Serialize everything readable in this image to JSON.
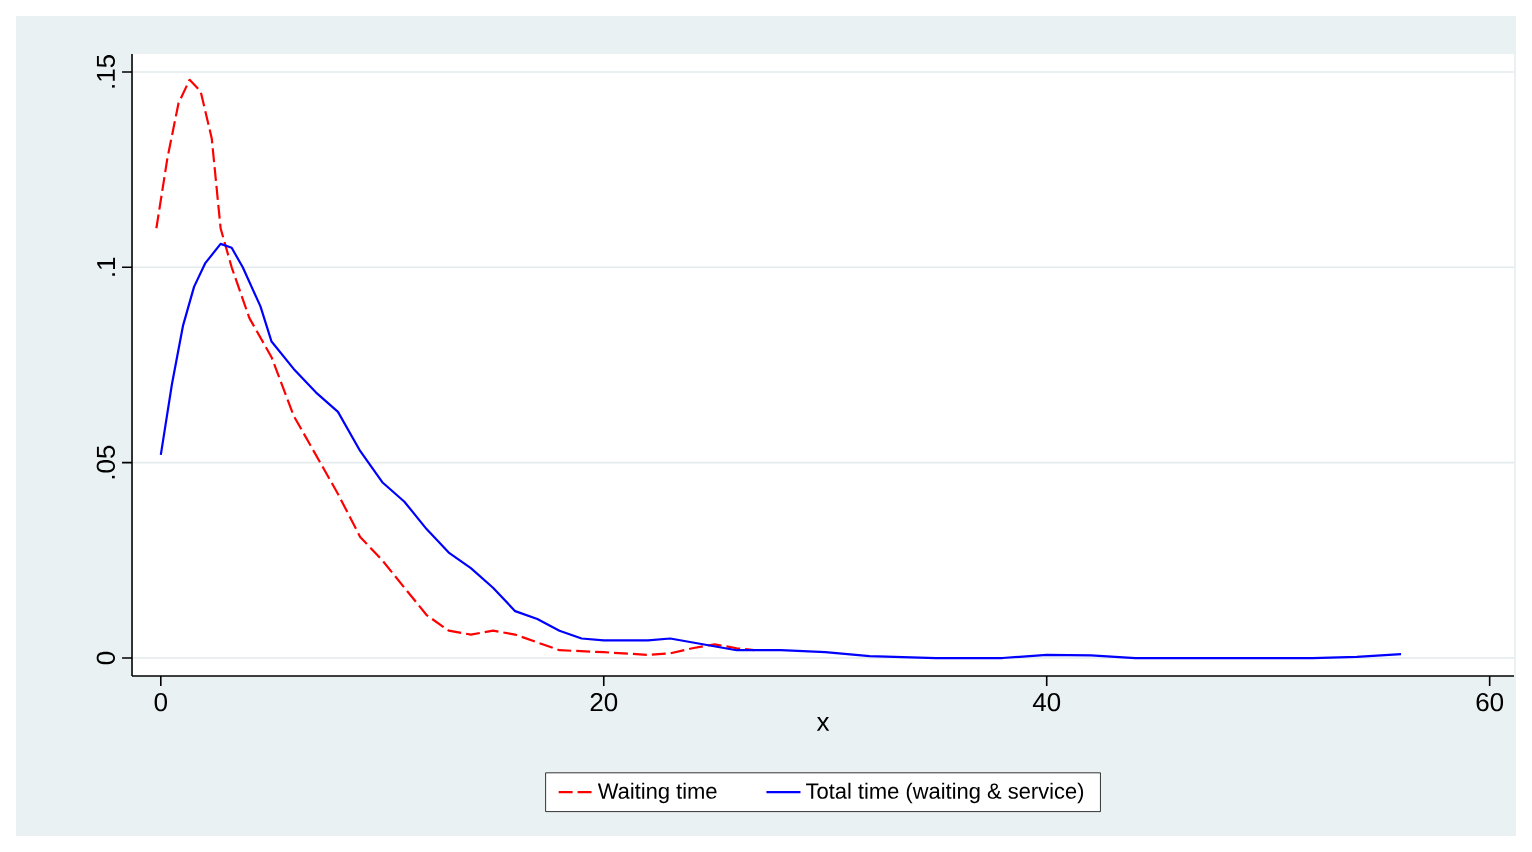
{
  "chart_data": {
    "type": "line",
    "xlabel": "x",
    "xlim": [
      -1.3,
      61.1
    ],
    "ylim": [
      -0.0046,
      0.1546
    ],
    "xticks": [
      0,
      20,
      40,
      60
    ],
    "yticks": [
      0,
      {
        "value": 0.05,
        "label": ".05"
      },
      {
        "value": 0.1,
        "label": ".1"
      },
      {
        "value": 0.15,
        "label": ".15"
      }
    ],
    "grid": "y",
    "legend": "bottom",
    "series": [
      {
        "name": "Waiting time",
        "color": "#ff0000",
        "line_style": "dashed",
        "x": [
          -0.2,
          0.3,
          0.8,
          1.3,
          1.8,
          2.3,
          2.7,
          3.2,
          4,
          5,
          6,
          7,
          8,
          9,
          10,
          11,
          12,
          13,
          14,
          15,
          16,
          17,
          18,
          20,
          22,
          23,
          24,
          25,
          26,
          26.8
        ],
        "values": [
          0.11,
          0.128,
          0.142,
          0.148,
          0.145,
          0.133,
          0.11,
          0.1,
          0.087,
          0.077,
          0.062,
          0.052,
          0.042,
          0.031,
          0.025,
          0.018,
          0.011,
          0.007,
          0.006,
          0.007,
          0.006,
          0.004,
          0.002,
          0.0015,
          0.0008,
          0.0012,
          0.0025,
          0.0035,
          0.0025,
          0.002
        ]
      },
      {
        "name": "Total time (waiting & service)",
        "color": "#0000ff",
        "line_style": "solid",
        "x": [
          0,
          0.5,
          1,
          1.5,
          2,
          2.7,
          3.2,
          3.7,
          4.5,
          5,
          6,
          7,
          8,
          9,
          10,
          11,
          12,
          13,
          14,
          15,
          16,
          17,
          18,
          19,
          20,
          22,
          23,
          24,
          26,
          28,
          30,
          32,
          35,
          38,
          40,
          42,
          44,
          48,
          52,
          54,
          56
        ],
        "values": [
          0.052,
          0.07,
          0.085,
          0.095,
          0.101,
          0.106,
          0.105,
          0.1,
          0.09,
          0.081,
          0.074,
          0.068,
          0.063,
          0.053,
          0.045,
          0.04,
          0.033,
          0.027,
          0.023,
          0.018,
          0.012,
          0.01,
          0.007,
          0.005,
          0.0045,
          0.0045,
          0.005,
          0.004,
          0.002,
          0.002,
          0.0015,
          0.0005,
          0,
          0,
          0.0008,
          0.0007,
          0,
          0,
          0,
          0.0003,
          0.001
        ]
      }
    ]
  }
}
